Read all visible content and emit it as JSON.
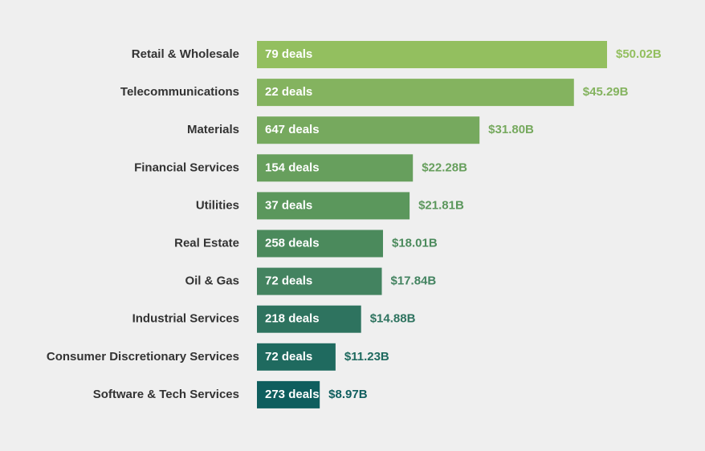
{
  "chart_data": {
    "type": "bar",
    "orientation": "horizontal",
    "categories": [
      "Retail & Wholesale",
      "Telecommunications",
      "Materials",
      "Financial Services",
      "Utilities",
      "Real Estate",
      "Oil & Gas",
      "Industrial Services",
      "Consumer Discretionary Services",
      "Software & Tech Services"
    ],
    "values": [
      50.02,
      45.29,
      31.8,
      22.28,
      21.81,
      18.01,
      17.84,
      14.88,
      11.23,
      8.97
    ],
    "value_labels": [
      "$50.02B",
      "$45.29B",
      "$31.80B",
      "$22.28B",
      "$21.81B",
      "$18.01B",
      "$17.84B",
      "$14.88B",
      "$11.23B",
      "$8.97B"
    ],
    "deal_labels": [
      "79 deals",
      "22 deals",
      "647 deals",
      "154 deals",
      "37 deals",
      "258 deals",
      "72 deals",
      "218 deals",
      "72 deals",
      "273 deals"
    ],
    "colors": [
      "#93bf5f",
      "#84b35f",
      "#76a95e",
      "#679f5d",
      "#5b975c",
      "#4b8a5c",
      "#438360",
      "#2e735f",
      "#1f6a5f",
      "#0f5e5e"
    ]
  }
}
